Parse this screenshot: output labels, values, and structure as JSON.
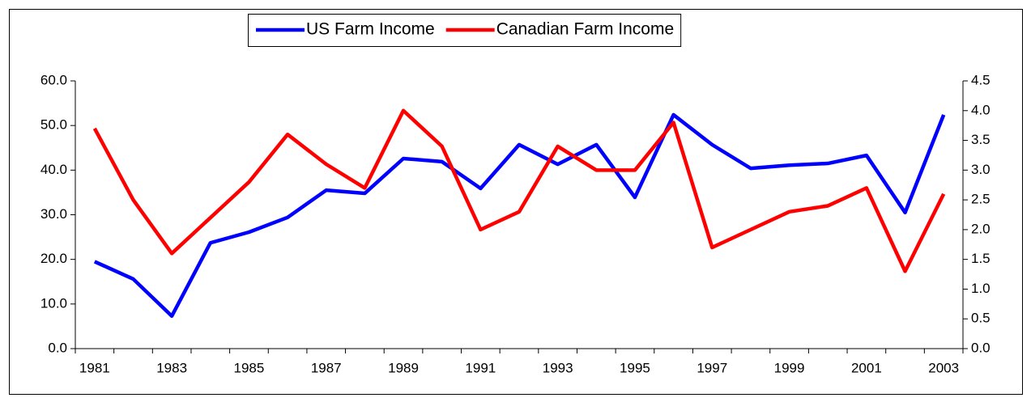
{
  "chart_data": {
    "type": "line",
    "categories": [
      "1981",
      null,
      "1983",
      null,
      "1985",
      null,
      "1987",
      null,
      "1989",
      null,
      "1991",
      null,
      "1993",
      null,
      "1995",
      null,
      "1997",
      null,
      "1999",
      null,
      "2001",
      null,
      "2003"
    ],
    "series": [
      {
        "name": "US Farm Income",
        "color": "#0000ff",
        "values": [
          19.5,
          15.6,
          7.3,
          23.7,
          26.1,
          29.4,
          35.5,
          34.8,
          42.6,
          41.9,
          35.9,
          45.7,
          41.3,
          45.7,
          33.9,
          52.4,
          45.7,
          40.4,
          41.1,
          41.5,
          43.3,
          30.5,
          52.4
        ]
      },
      {
        "name": "Canadian Farm Income",
        "color": "#ff0000",
        "axis": "y2",
        "values": [
          3.7,
          2.5,
          1.6,
          2.2,
          2.8,
          3.6,
          3.1,
          2.7,
          4.0,
          3.4,
          2.0,
          2.3,
          3.4,
          3.0,
          3.0,
          3.8,
          1.7,
          2.0,
          2.3,
          2.4,
          2.7,
          1.3,
          2.6
        ]
      }
    ],
    "ylim": [
      0,
      60
    ],
    "yticks": [
      {
        "value": 0,
        "label": "0.0"
      },
      {
        "value": 10,
        "label": "10.0"
      },
      {
        "value": 20,
        "label": "20.0"
      },
      {
        "value": 30,
        "label": "30.0"
      },
      {
        "value": 40,
        "label": "40.0"
      },
      {
        "value": 50,
        "label": "50.0"
      },
      {
        "value": 60,
        "label": "60.0"
      }
    ],
    "y2lim": [
      0,
      4.5
    ],
    "y2ticks": [
      {
        "value": 0,
        "label": "0.0"
      },
      0.5,
      {
        "value": 1,
        "label": "1.0"
      },
      1.5,
      {
        "value": 2,
        "label": "2.0"
      },
      2.5,
      {
        "value": 3,
        "label": "3.0"
      },
      3.5,
      {
        "value": 4,
        "label": "4.0"
      },
      4.5
    ],
    "legend": "top",
    "grid": false
  }
}
